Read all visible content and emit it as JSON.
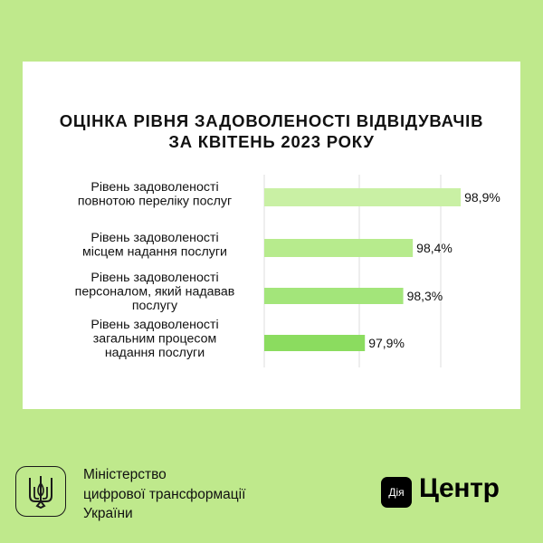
{
  "chart_data": {
    "type": "bar",
    "orientation": "horizontal",
    "title_lines": [
      "ОЦІНКА РІВНЯ ЗАДОВОЛЕНОСТІ ВІДВІДУВАЧІВ",
      "ЗА КВІТЕНЬ 2023 РОКУ"
    ],
    "categories": [
      [
        "Рівень задоволеності",
        "повнотою переліку послуг"
      ],
      [
        "Рівень задоволеності",
        "місцем надання послуги"
      ],
      [
        "Рівень задоволеності",
        "персоналом, який надавав",
        "послугу"
      ],
      [
        "Рівень задоволеності",
        "загальним процесом",
        "надання послуги"
      ]
    ],
    "values": [
      98.9,
      98.4,
      98.3,
      97.9
    ],
    "value_labels": [
      "98,9%",
      "98,4%",
      "98,3%",
      "97,9%"
    ],
    "bar_colors": [
      "#c9f0a4",
      "#b7eb8d",
      "#a3e57a",
      "#8bdc5f"
    ],
    "xlim": [
      96.85,
      99.05
    ],
    "grid": true,
    "xlabel": "",
    "ylabel": ""
  },
  "footer": {
    "ministry_lines": [
      "Міністерство",
      "цифрової трансформації",
      "України"
    ],
    "brand_box": "Дія",
    "brand_name": "Центр"
  },
  "colors": {
    "background": "#bfe98c",
    "card": "#ffffff",
    "grid": "#dddddd",
    "text": "#111111"
  },
  "icons": {
    "emblem": "trident-icon"
  }
}
